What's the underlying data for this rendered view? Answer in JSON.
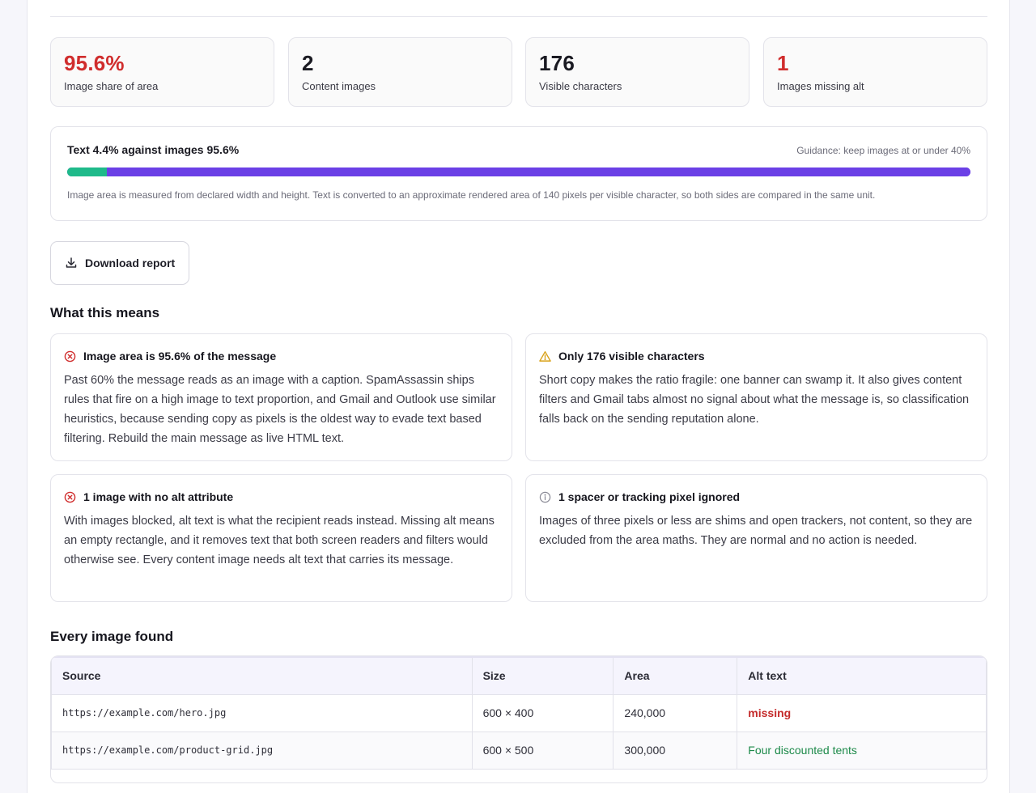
{
  "stats": [
    {
      "value": "95.6%",
      "label": "Image share of area",
      "alert": true
    },
    {
      "value": "2",
      "label": "Content images",
      "alert": false
    },
    {
      "value": "176",
      "label": "Visible characters",
      "alert": false
    },
    {
      "value": "1",
      "label": "Images missing alt",
      "alert": true
    }
  ],
  "ratio": {
    "title": "Text 4.4% against images 95.6%",
    "guidance": "Guidance: keep images at or under 40%",
    "text_percent": 4.4,
    "image_percent": 95.6,
    "note": "Image area is measured from declared width and height. Text is converted to an approximate rendered area of 140 pixels per visible character, so both sides are compared in the same unit.",
    "colors": {
      "text": "#1fba8a",
      "image": "#6b40e6"
    }
  },
  "download": {
    "label": "Download report",
    "icon": "download-icon"
  },
  "meaning": {
    "title": "What this means",
    "findings": [
      {
        "severity": "error",
        "icon": "error-circle-icon",
        "title": "Image area is 95.6% of the message",
        "body": "Past 60% the message reads as an image with a caption. SpamAssassin ships rules that fire on a high image to text proportion, and Gmail and Outlook use similar heuristics, because sending copy as pixels is the oldest way to evade text based filtering. Rebuild the main message as live HTML text."
      },
      {
        "severity": "warning",
        "icon": "warning-triangle-icon",
        "title": "Only 176 visible characters",
        "body": "Short copy makes the ratio fragile: one banner can swamp it. It also gives content filters and Gmail tabs almost no signal about what the message is, so classification falls back on the sending reputation alone."
      },
      {
        "severity": "error",
        "icon": "error-circle-icon",
        "title": "1 image with no alt attribute",
        "body": "With images blocked, alt text is what the recipient reads instead. Missing alt means an empty rectangle, and it removes text that both screen readers and filters would otherwise see. Every content image needs alt text that carries its message."
      },
      {
        "severity": "info",
        "icon": "info-circle-icon",
        "title": "1 spacer or tracking pixel ignored",
        "body": "Images of three pixels or less are shims and open trackers, not content, so they are excluded from the area maths. They are normal and no action is needed."
      }
    ]
  },
  "images": {
    "title": "Every image found",
    "columns": [
      "Source",
      "Size",
      "Area",
      "Alt text"
    ],
    "rows": [
      {
        "source": "https://example.com/hero.jpg",
        "size": "600 × 400",
        "area": "240,000",
        "alt": "missing",
        "alt_missing": true
      },
      {
        "source": "https://example.com/product-grid.jpg",
        "size": "600 × 500",
        "area": "300,000",
        "alt": "Four discounted tents",
        "alt_missing": false
      }
    ]
  }
}
